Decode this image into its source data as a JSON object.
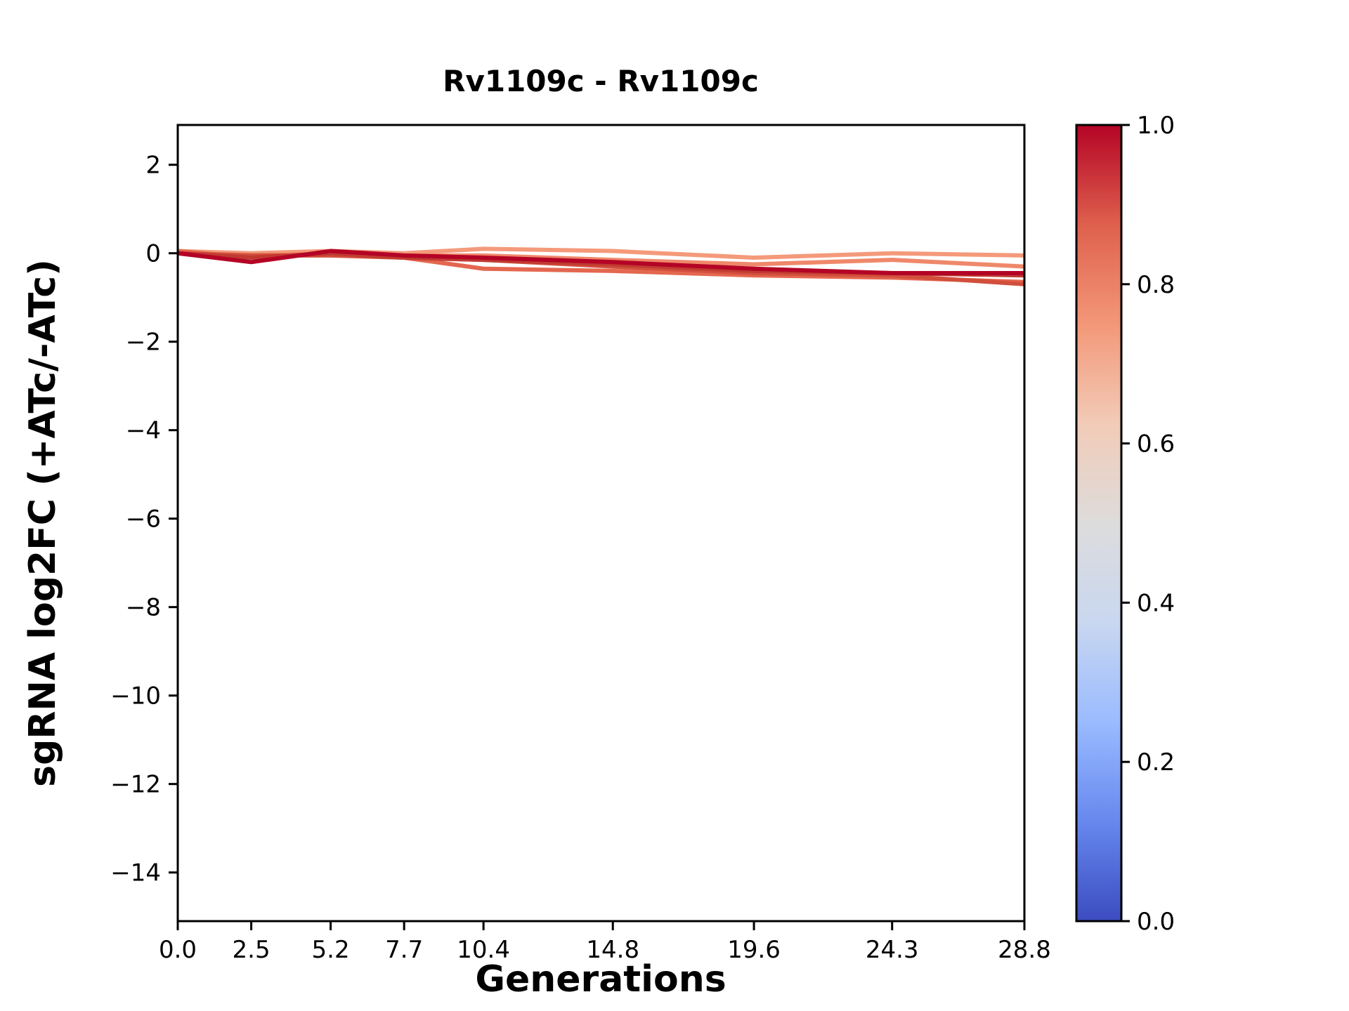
{
  "figure": {
    "title": "Rv1109c - Rv1109c",
    "xlabel": "Generations",
    "ylabel": "sgRNA log2FC (+ATc/-ATc)"
  },
  "chart_data": {
    "type": "line",
    "title": "Rv1109c - Rv1109c",
    "xlabel": "Generations",
    "ylabel": "sgRNA log2FC (+ATc/-ATc)",
    "grid": false,
    "legend": "none",
    "xlim": [
      0.0,
      28.8
    ],
    "ylim": [
      -15.1,
      2.9
    ],
    "x": [
      0.0,
      2.5,
      5.2,
      7.7,
      10.4,
      14.8,
      19.6,
      24.3,
      28.8
    ],
    "xticks": [
      {
        "value": 0.0,
        "label": "0.0"
      },
      {
        "value": 2.5,
        "label": "2.5"
      },
      {
        "value": 5.2,
        "label": "5.2"
      },
      {
        "value": 7.7,
        "label": "7.7"
      },
      {
        "value": 10.4,
        "label": "10.4"
      },
      {
        "value": 14.8,
        "label": "14.8"
      },
      {
        "value": 19.6,
        "label": "19.6"
      },
      {
        "value": 24.3,
        "label": "24.3"
      },
      {
        "value": 28.8,
        "label": "28.8"
      }
    ],
    "yticks": [
      {
        "value": 2,
        "label": "2"
      },
      {
        "value": 0,
        "label": "0"
      },
      {
        "value": -2,
        "label": "−2"
      },
      {
        "value": -4,
        "label": "−4"
      },
      {
        "value": -6,
        "label": "−6"
      },
      {
        "value": -8,
        "label": "−8"
      },
      {
        "value": -10,
        "label": "−10"
      },
      {
        "value": -12,
        "label": "−12"
      },
      {
        "value": -14,
        "label": "−14"
      }
    ],
    "series": [
      {
        "colorbar_value": 0.72,
        "color": "#f49a7b",
        "values": [
          0.05,
          0.0,
          0.05,
          0.0,
          0.1,
          0.05,
          -0.1,
          0.0,
          -0.05
        ]
      },
      {
        "colorbar_value": 0.78,
        "color": "#ef886b",
        "values": [
          0.0,
          -0.05,
          0.0,
          -0.05,
          -0.05,
          -0.15,
          -0.25,
          -0.15,
          -0.3
        ]
      },
      {
        "colorbar_value": 0.84,
        "color": "#e4674f",
        "values": [
          0.05,
          -0.1,
          0.0,
          -0.1,
          -0.35,
          -0.4,
          -0.5,
          -0.55,
          -0.65
        ]
      },
      {
        "colorbar_value": 0.9,
        "color": "#d24f3d",
        "values": [
          0.0,
          -0.05,
          -0.05,
          -0.1,
          -0.15,
          -0.3,
          -0.45,
          -0.5,
          -0.7
        ]
      },
      {
        "colorbar_value": 0.95,
        "color": "#c03a31",
        "values": [
          0.0,
          -0.1,
          0.0,
          -0.1,
          -0.15,
          -0.25,
          -0.4,
          -0.45,
          -0.5
        ]
      },
      {
        "colorbar_value": 1.0,
        "color": "#b40426",
        "values": [
          0.0,
          -0.2,
          0.05,
          -0.05,
          -0.1,
          -0.2,
          -0.35,
          -0.45,
          -0.45
        ]
      }
    ],
    "colorbar": {
      "min": 0.0,
      "max": 1.0,
      "colormap": "coolwarm",
      "ticks": [
        {
          "value": 1.0,
          "label": "1.0"
        },
        {
          "value": 0.8,
          "label": "0.8"
        },
        {
          "value": 0.6,
          "label": "0.6"
        },
        {
          "value": 0.4,
          "label": "0.4"
        },
        {
          "value": 0.2,
          "label": "0.2"
        },
        {
          "value": 0.0,
          "label": "0.0"
        }
      ],
      "gradient_stops": [
        {
          "pos": 0.0,
          "color": "#3b4cc0"
        },
        {
          "pos": 0.125,
          "color": "#6788ee"
        },
        {
          "pos": 0.25,
          "color": "#9abbff"
        },
        {
          "pos": 0.375,
          "color": "#c9d7f0"
        },
        {
          "pos": 0.5,
          "color": "#dddcdc"
        },
        {
          "pos": 0.625,
          "color": "#f2cbb7"
        },
        {
          "pos": 0.75,
          "color": "#f39778"
        },
        {
          "pos": 0.875,
          "color": "#de604d"
        },
        {
          "pos": 1.0,
          "color": "#b40426"
        }
      ]
    },
    "axis_color": "#000000",
    "line_width": 6
  }
}
